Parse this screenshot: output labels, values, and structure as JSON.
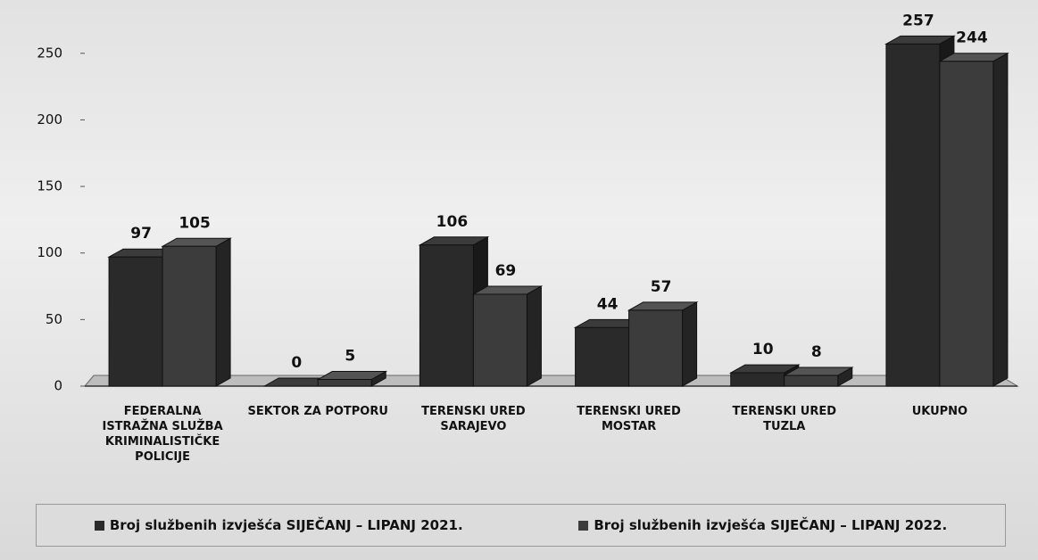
{
  "chart_data": {
    "type": "bar",
    "categories": [
      "FEDERALNA ISTRAŽNA SLUŽBA KRIMINALISTIČKE POLICIJE",
      "SEKTOR ZA POTPORU",
      "TERENSKI URED SARAJEVO",
      "TERENSKI URED MOSTAR",
      "TERENSKI URED TUZLA",
      "UKUPNO"
    ],
    "series": [
      {
        "name": "Broj službenih izvješća SIJEČANJ – LIPANJ 2021.",
        "color": "#2a2a2a",
        "values": [
          97,
          0,
          106,
          44,
          10,
          257
        ]
      },
      {
        "name": "Broj službenih izvješća SIJEČANJ – LIPANJ 2022.",
        "color": "#3c3c3c",
        "values": [
          105,
          5,
          69,
          57,
          8,
          244
        ]
      }
    ],
    "ylim": [
      0,
      280
    ],
    "yticks": [
      0,
      50,
      100,
      150,
      200,
      250
    ],
    "legend": "bottom"
  }
}
